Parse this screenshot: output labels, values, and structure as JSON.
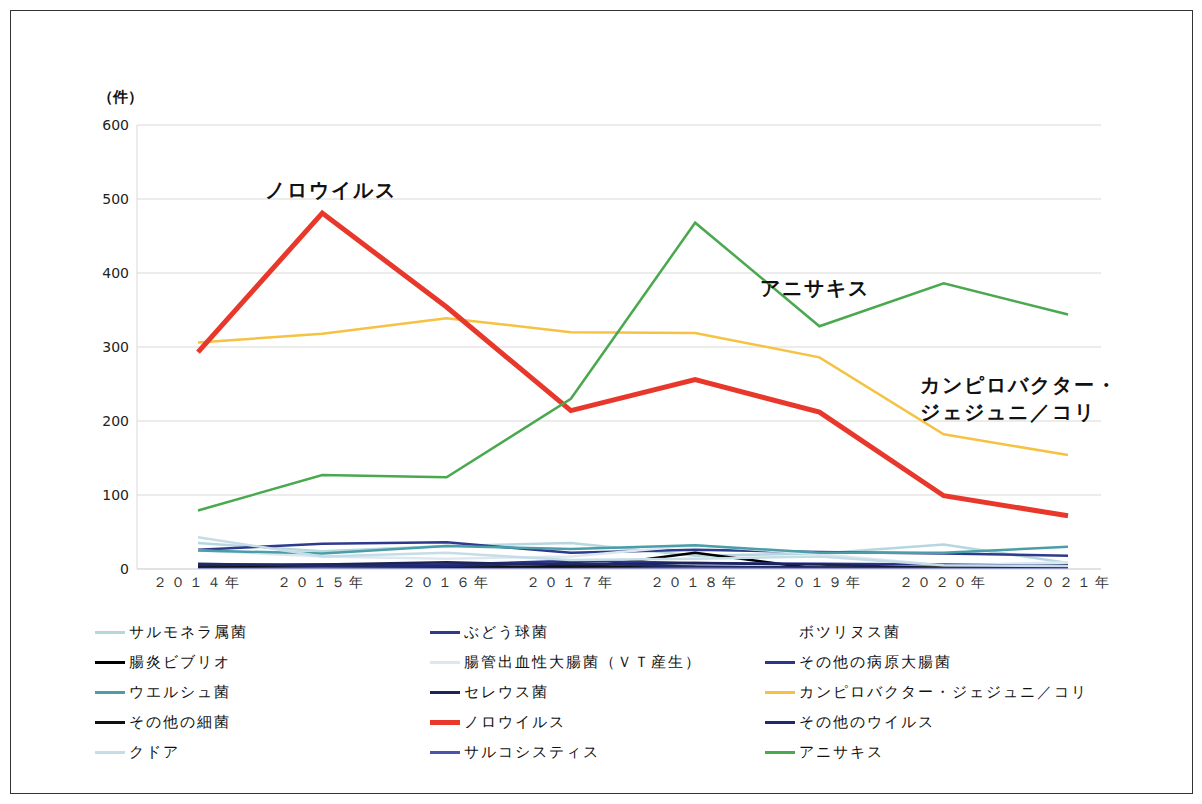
{
  "chart_data": {
    "type": "line",
    "y_label": "（件）",
    "categories": [
      "２０１４年",
      "２０１５年",
      "２０１６年",
      "２０１７年",
      "２０１８年",
      "２０１９年",
      "２０２０年",
      "２０２１年"
    ],
    "ylim": [
      0,
      600
    ],
    "yticks": [
      0,
      100,
      200,
      300,
      400,
      500,
      600
    ],
    "grid": true,
    "legend": "bottom",
    "annotations": [
      [
        "ノロウイルス"
      ],
      [
        "アニサキス"
      ],
      [
        "カンピロバクター・",
        "ジェジュニ／コリ"
      ]
    ],
    "series": [
      {
        "name": "サルモネラ属菌",
        "color": "#b7d7e0",
        "values": [
          35,
          24,
          31,
          35,
          18,
          21,
          33,
          8
        ]
      },
      {
        "name": "ぶどう球菌",
        "color": "#2e3a8c",
        "values": [
          26,
          34,
          36,
          22,
          26,
          23,
          21,
          18
        ]
      },
      {
        "name": "ボツリヌス菌",
        "color": "#ffffff",
        "values": [
          0,
          0,
          0,
          1,
          0,
          0,
          0,
          1
        ]
      },
      {
        "name": "腸炎ビブリオ",
        "color": "#000000",
        "values": [
          6,
          3,
          3,
          0,
          22,
          0,
          1,
          0
        ]
      },
      {
        "name": "腸管出血性大腸菌（ＶＴ産生）",
        "color": "#dce8f0",
        "values": [
          25,
          17,
          14,
          17,
          32,
          20,
          5,
          9
        ]
      },
      {
        "name": "その他の病原大腸菌",
        "color": "#2a3590",
        "values": [
          3,
          6,
          6,
          11,
          8,
          7,
          6,
          4
        ]
      },
      {
        "name": "ウエルシュ菌",
        "color": "#4a9ea8",
        "values": [
          25,
          21,
          31,
          27,
          32,
          22,
          22,
          30
        ]
      },
      {
        "name": "セレウス菌",
        "color": "#1c2457",
        "values": [
          6,
          6,
          9,
          5,
          8,
          6,
          1,
          5
        ]
      },
      {
        "name": "カンピロバクター・ジェジュニ／コリ",
        "color": "#f5c242",
        "values": [
          306,
          318,
          339,
          320,
          319,
          286,
          182,
          154
        ]
      },
      {
        "name": "その他の細菌",
        "color": "#111111",
        "values": [
          2,
          3,
          3,
          3,
          3,
          2,
          2,
          1
        ]
      },
      {
        "name": "ノロウイルス",
        "color": "#e8382b",
        "line_style": "thick",
        "values": [
          293,
          481,
          354,
          214,
          256,
          212,
          99,
          72
        ]
      },
      {
        "name": "その他のウイルス",
        "color": "#1f2a6b",
        "values": [
          7,
          4,
          4,
          8,
          3,
          2,
          1,
          0
        ]
      },
      {
        "name": "クドア",
        "color": "#c5dde6",
        "values": [
          43,
          17,
          22,
          12,
          14,
          17,
          5,
          4
        ]
      },
      {
        "name": "サルコシスティス",
        "color": "#4b52b0",
        "values": [
          0,
          1,
          0,
          0,
          1,
          0,
          0,
          0
        ]
      },
      {
        "name": "アニサキス",
        "color": "#4aa84e",
        "values": [
          79,
          127,
          124,
          230,
          468,
          328,
          386,
          344
        ]
      }
    ]
  }
}
